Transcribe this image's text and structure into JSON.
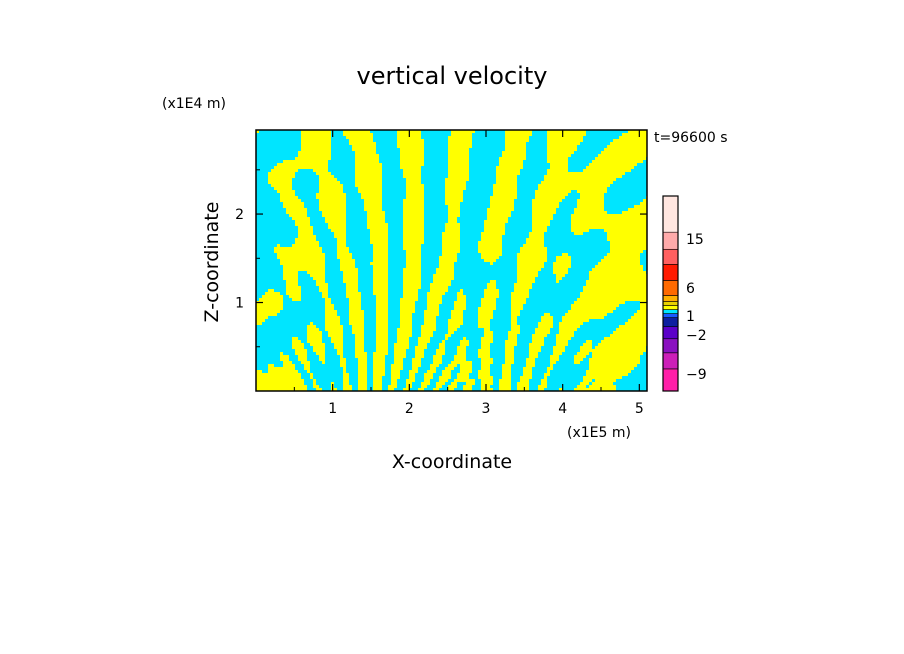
{
  "chart_data": {
    "type": "heatmap",
    "title": "vertical velocity",
    "xlabel": "X-coordinate",
    "ylabel": "Z-coordinate",
    "x_unit": "(x1E5 m)",
    "y_unit": "(x1E4 m)",
    "time_label": "t=96600 s",
    "xlim": [
      0.0,
      5.1
    ],
    "ylim": [
      0.0,
      2.95
    ],
    "x_ticks": [
      1,
      2,
      3,
      4,
      5
    ],
    "y_ticks": [
      1,
      2
    ],
    "x_tick_labels": [
      "1",
      "2",
      "3",
      "4",
      "5"
    ],
    "y_tick_labels": [
      "1",
      "2"
    ],
    "colorbar": {
      "tick_values": [
        15,
        6,
        1,
        -2,
        -9
      ],
      "tick_labels": [
        "15",
        "6",
        "1",
        "-2",
        "-9"
      ],
      "levels": [
        {
          "color": "#ff1fa8"
        },
        {
          "color": "#cc1fb8"
        },
        {
          "color": "#8a10c0"
        },
        {
          "color": "#5b00c9"
        },
        {
          "color": "#0d1fa0"
        },
        {
          "color": "#1a5aff"
        },
        {
          "color": "#00e5ff"
        },
        {
          "color": "#ffff00"
        },
        {
          "color": "#e8d200"
        },
        {
          "color": "#ffb000"
        },
        {
          "color": "#ff6a00"
        },
        {
          "color": "#ff1a00"
        },
        {
          "color": "#ff6060"
        },
        {
          "color": "#ffaaaa"
        },
        {
          "color": "#ffe6e0"
        }
      ]
    },
    "field_colors": {
      "negative": "#00e5ff",
      "positive": "#ffff00"
    }
  }
}
